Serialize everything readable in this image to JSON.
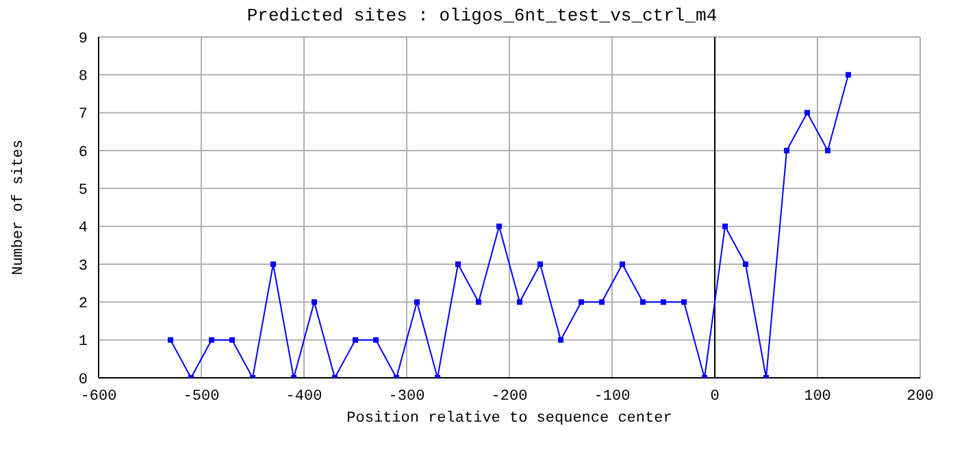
{
  "chart_data": {
    "type": "line",
    "title": "Predicted sites : oligos_6nt_test_vs_ctrl_m4",
    "xlabel": "Position relative to sequence center",
    "ylabel": "Number of sites",
    "x": [
      -530,
      -510,
      -490,
      -470,
      -450,
      -430,
      -410,
      -390,
      -370,
      -350,
      -330,
      -310,
      -290,
      -270,
      -250,
      -230,
      -210,
      -190,
      -170,
      -150,
      -130,
      -110,
      -90,
      -70,
      -50,
      -30,
      -10,
      10,
      30,
      50,
      70,
      90,
      110,
      130
    ],
    "series": [
      {
        "color": "#0000ff",
        "values": [
          1,
          0,
          1,
          1,
          0,
          3,
          0,
          2,
          0,
          1,
          1,
          0,
          2,
          0,
          3,
          2,
          4,
          2,
          3,
          1,
          2,
          2,
          3,
          2,
          2,
          2,
          0,
          4,
          3,
          0,
          6,
          7,
          6,
          8
        ]
      }
    ],
    "xlim": [
      -600,
      200
    ],
    "xticks": [
      -600,
      -500,
      -400,
      -300,
      -200,
      -100,
      0,
      100,
      200
    ],
    "ylim": [
      0,
      9
    ],
    "yticks": [
      0,
      1,
      2,
      3,
      4,
      5,
      6,
      7,
      8,
      9
    ],
    "ref_lines": [
      {
        "axis": "x",
        "value": 0,
        "color": "#000000"
      }
    ],
    "grid": true,
    "marker": "square",
    "line_style": "solid"
  }
}
